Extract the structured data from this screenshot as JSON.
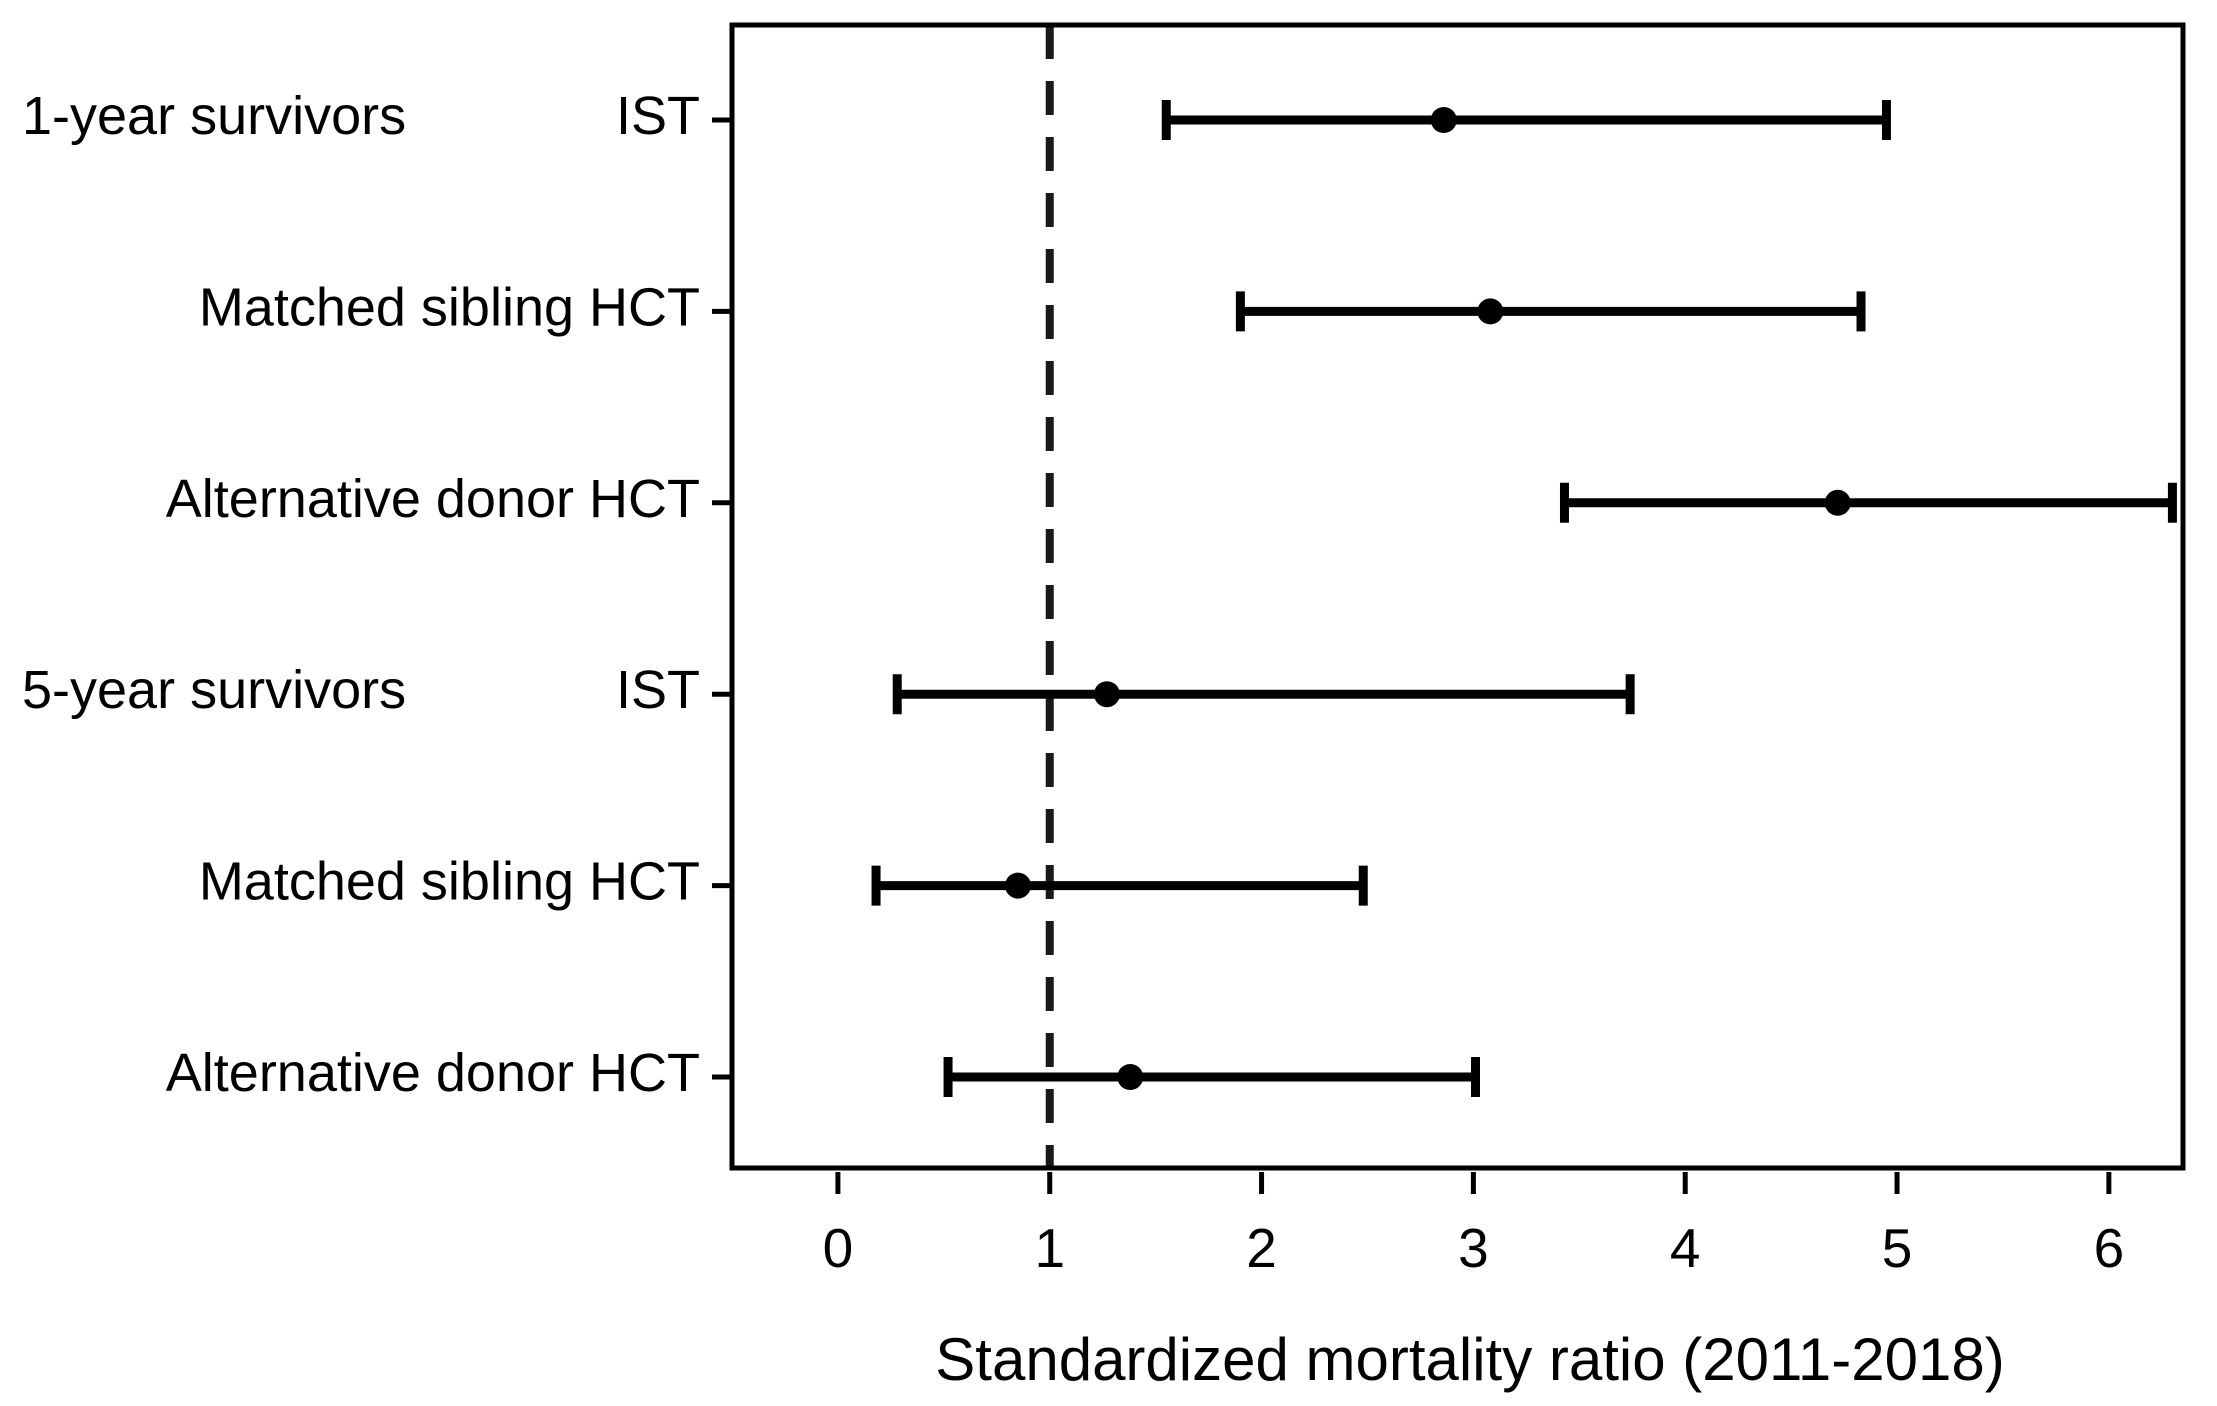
{
  "figure": {
    "background": "#ffffff",
    "ink_color": "#000000",
    "reference_line_color": "#1a1a1a"
  },
  "chart_data": {
    "type": "scatter",
    "variant": "horizontal-forest-plot-with-error-bars",
    "title": "",
    "xlabel": "Standardized mortality ratio (2011-2018)",
    "ylabel": "",
    "xlim": [
      -0.5,
      6.35
    ],
    "x_ticks": [
      0,
      1,
      2,
      3,
      4,
      5,
      6
    ],
    "reference_line": {
      "x": 1,
      "style": "dashed"
    },
    "grid": false,
    "legend": false,
    "marker": "filled-circle",
    "sections": [
      "1-year survivors",
      "5-year survivors"
    ],
    "rows": [
      {
        "section": "1-year survivors",
        "label": "IST",
        "value": 2.86,
        "ci_low": 1.55,
        "ci_high": 4.95
      },
      {
        "section": "",
        "label": "Matched sibling HCT",
        "value": 3.08,
        "ci_low": 1.9,
        "ci_high": 4.83
      },
      {
        "section": "",
        "label": "Alternative donor HCT",
        "value": 4.72,
        "ci_low": 3.43,
        "ci_high": 6.3
      },
      {
        "section": "5-year survivors",
        "label": "IST",
        "value": 1.27,
        "ci_low": 0.28,
        "ci_high": 3.74
      },
      {
        "section": "",
        "label": "Matched sibling HCT",
        "value": 0.85,
        "ci_low": 0.18,
        "ci_high": 2.48
      },
      {
        "section": "",
        "label": "Alternative donor HCT",
        "value": 1.38,
        "ci_low": 0.52,
        "ci_high": 3.01
      }
    ]
  }
}
